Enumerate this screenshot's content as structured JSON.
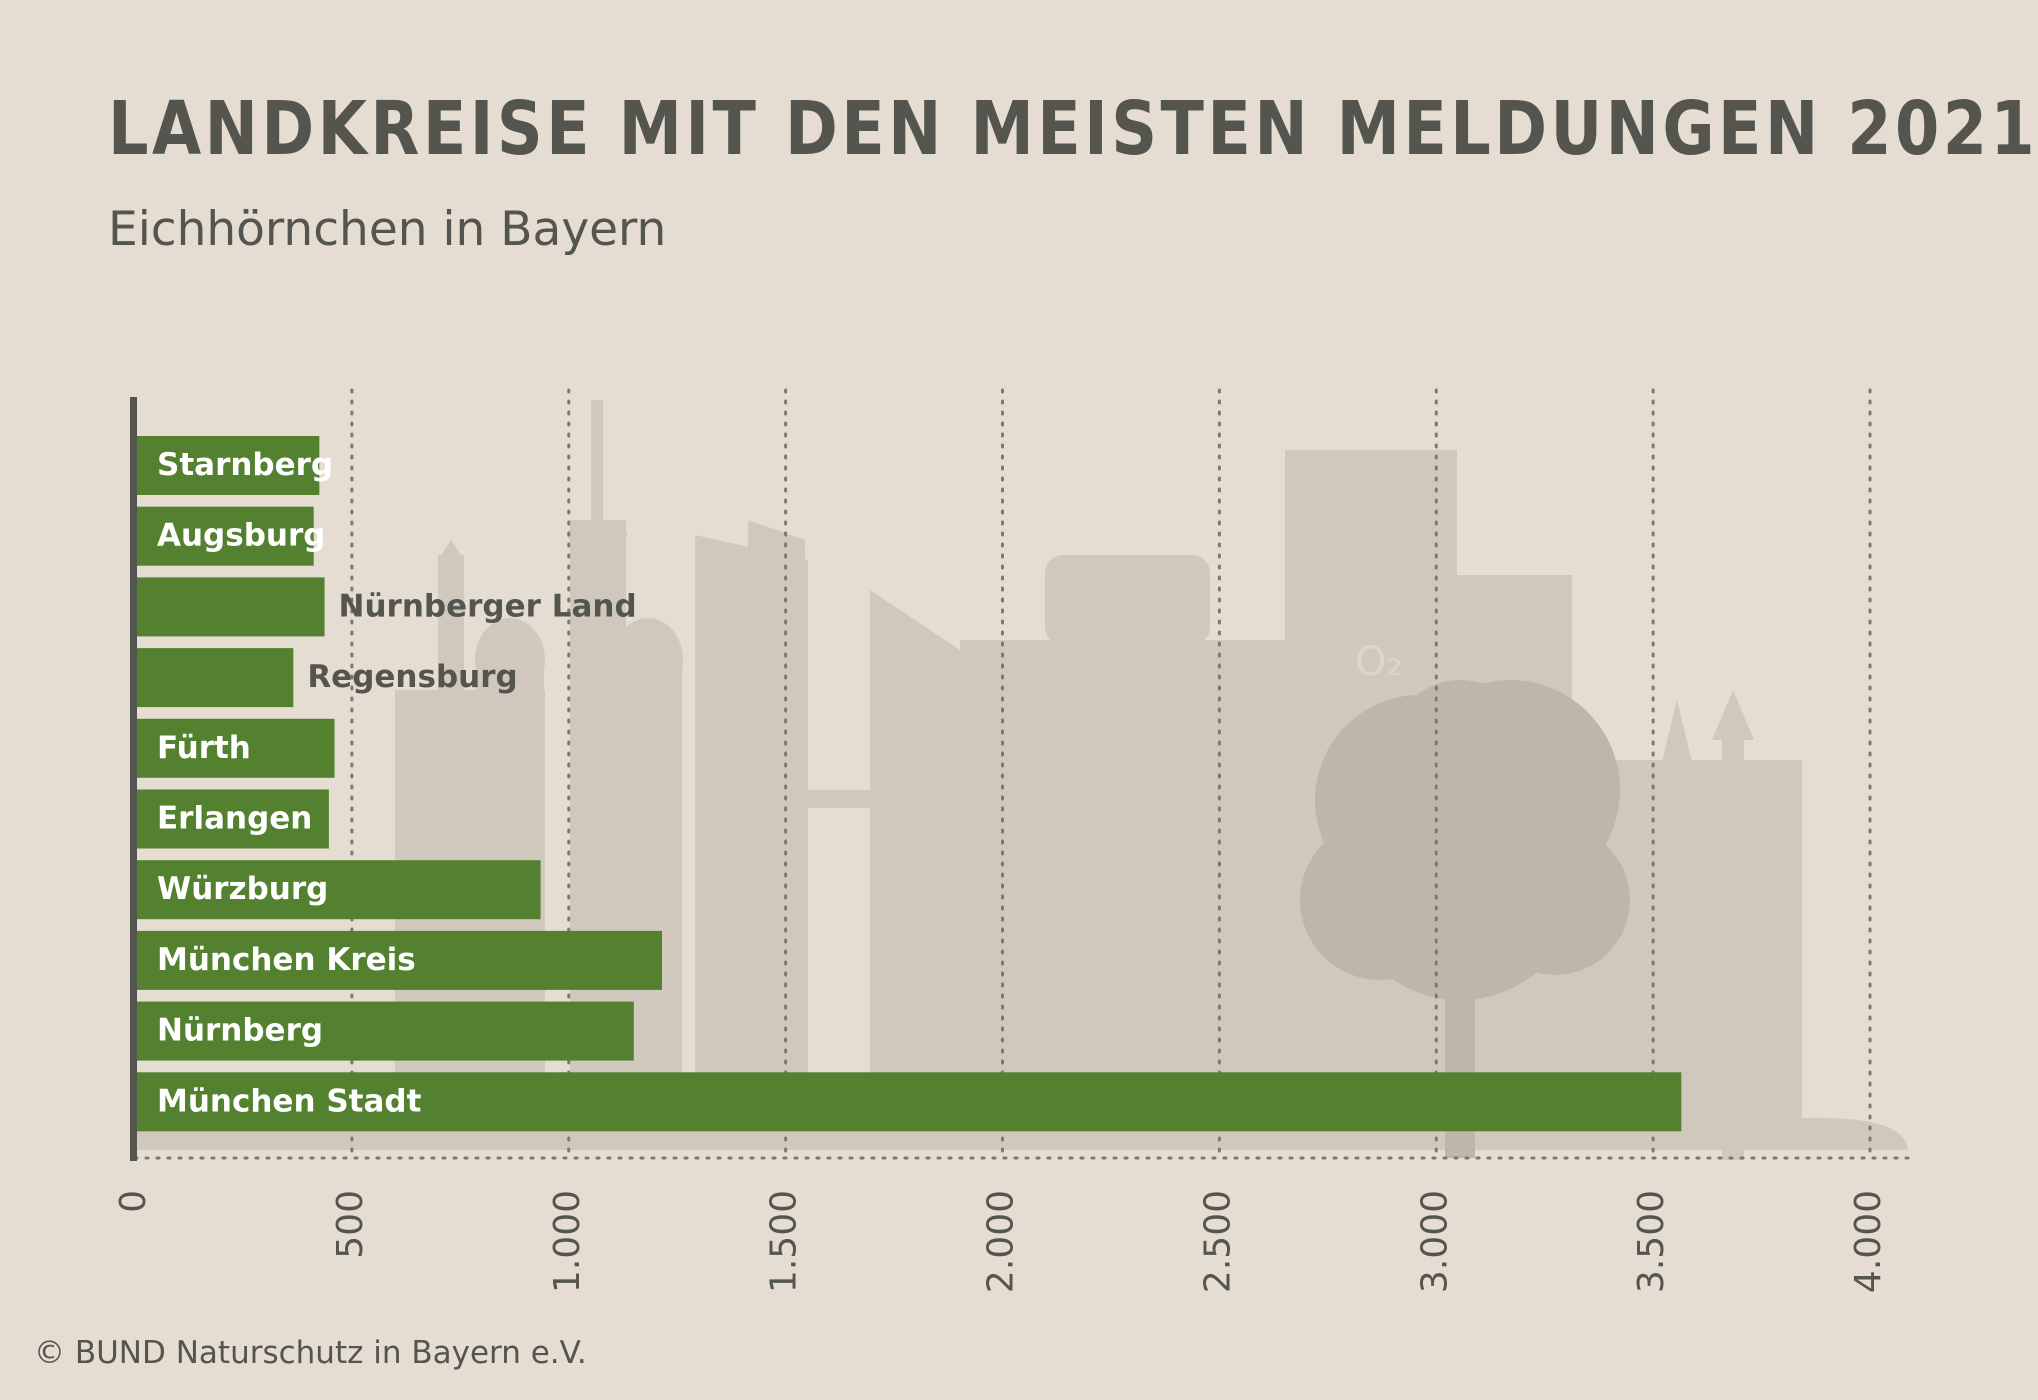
{
  "header": {
    "title": "LANDKREISE MIT DEN MEISTEN MELDUNGEN 2021",
    "subtitle": "Eichhörnchen in Bayern"
  },
  "footer": {
    "copyright": "© BUND Naturschutz in Bayern e.V."
  },
  "colors": {
    "background": "#e5ddd1",
    "bar": "#548130",
    "text": "#555550",
    "skyline": "#d0c8bc",
    "tree": "#beb6a8"
  },
  "chart_data": {
    "type": "bar",
    "orientation": "horizontal",
    "title": "LANDKREISE MIT DEN MEISTEN MELDUNGEN 2021",
    "subtitle": "Eichhörnchen in Bayern",
    "categories": [
      "Starnberg",
      "Augsburg",
      "Nürnberger Land",
      "Regensburg",
      "Fürth",
      "Erlangen",
      "Würzburg",
      "München Kreis",
      "Nürnberg",
      "München Stadt"
    ],
    "values": [
      425,
      412,
      437,
      365,
      460,
      447,
      935,
      1215,
      1150,
      3565
    ],
    "label_position": [
      "inside",
      "inside",
      "outside",
      "outside",
      "inside",
      "inside",
      "inside",
      "inside",
      "inside",
      "inside"
    ],
    "xlim": [
      0,
      4000
    ],
    "ticks": [
      0,
      500,
      1000,
      1500,
      2000,
      2500,
      3000,
      3500,
      4000
    ],
    "tick_labels": [
      "0",
      "500",
      "1.000",
      "1.500",
      "2.000",
      "2.500",
      "3.000",
      "3.500",
      "4.000"
    ],
    "grid": "vertical dotted",
    "xlabel": "",
    "ylabel": ""
  }
}
